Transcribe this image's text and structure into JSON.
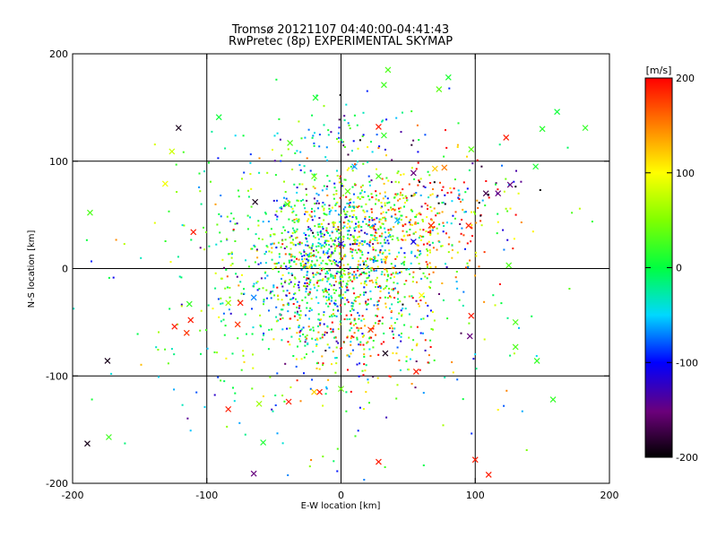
{
  "chart_data": {
    "type": "scatter",
    "title": "Tromsø 20121107 04:40:00-04:41:43",
    "subtitle": "RwPretec (8p) EXPERIMENTAL SKYMAP",
    "xlabel": "E-W location [km]",
    "ylabel": "N-S location [km]",
    "xlim": [
      -200,
      200
    ],
    "ylim": [
      -200,
      200
    ],
    "x_ticks": [
      "-200",
      "-100",
      "0",
      "100",
      "200"
    ],
    "y_ticks": [
      "-200",
      "-100",
      "0",
      "100",
      "200"
    ],
    "grid": true,
    "colorbar": {
      "label": "[m/s]",
      "range": [
        -200,
        200
      ],
      "ticks": [
        "200",
        "100",
        "0",
        "-100",
        "-200"
      ],
      "colormap": "rainbow (black-purple-blue-cyan-green-yellow-red)"
    },
    "cluster_points_approx": [
      {
        "x": -10,
        "y": 5,
        "v": -20,
        "sx": 35,
        "sy": 45,
        "n": 900
      },
      {
        "x": 60,
        "y": 40,
        "v": 150,
        "sx": 35,
        "sy": 30,
        "n": 250
      },
      {
        "x": 15,
        "y": 20,
        "v": 60,
        "sx": 30,
        "sy": 35,
        "n": 300
      },
      {
        "x": 0,
        "y": 120,
        "v": -60,
        "sx": 25,
        "sy": 15,
        "n": 60
      },
      {
        "x": 90,
        "y": 75,
        "v": -150,
        "sx": 25,
        "sy": 15,
        "n": 40
      },
      {
        "x": 10,
        "y": -60,
        "v": 170,
        "sx": 30,
        "sy": 25,
        "n": 120
      },
      {
        "x": -10,
        "y": -30,
        "v": 0,
        "sx": 80,
        "sy": 80,
        "n": 450
      }
    ],
    "marked_points": [
      {
        "x": -121,
        "y": 131,
        "v": -190
      },
      {
        "x": -126,
        "y": 109,
        "v": 80
      },
      {
        "x": -131,
        "y": 79,
        "v": 95
      },
      {
        "x": -187,
        "y": 52,
        "v": 30
      },
      {
        "x": -91,
        "y": 141,
        "v": 5
      },
      {
        "x": -19,
        "y": 159,
        "v": 10
      },
      {
        "x": -38,
        "y": 117,
        "v": 30
      },
      {
        "x": 28,
        "y": 132,
        "v": 190
      },
      {
        "x": 32,
        "y": 171,
        "v": 25
      },
      {
        "x": 35,
        "y": 185,
        "v": 30
      },
      {
        "x": 80,
        "y": 178,
        "v": 10
      },
      {
        "x": 73,
        "y": 167,
        "v": 35
      },
      {
        "x": 32,
        "y": 124,
        "v": 20
      },
      {
        "x": 97,
        "y": 111,
        "v": 35
      },
      {
        "x": 123,
        "y": 122,
        "v": 190
      },
      {
        "x": 150,
        "y": 130,
        "v": 15
      },
      {
        "x": 182,
        "y": 131,
        "v": 20
      },
      {
        "x": 161,
        "y": 146,
        "v": 5
      },
      {
        "x": 145,
        "y": 95,
        "v": 10
      },
      {
        "x": 126,
        "y": 78,
        "v": -150
      },
      {
        "x": 117,
        "y": 70,
        "v": -150
      },
      {
        "x": 108,
        "y": 70,
        "v": -170
      },
      {
        "x": 77,
        "y": 94,
        "v": 150
      },
      {
        "x": 70,
        "y": 93,
        "v": 120
      },
      {
        "x": -110,
        "y": 34,
        "v": 190
      },
      {
        "x": -64,
        "y": 62,
        "v": -190
      },
      {
        "x": -40,
        "y": 60,
        "v": 30
      },
      {
        "x": 5,
        "y": 72,
        "v": 40
      },
      {
        "x": -112,
        "y": -48,
        "v": 190
      },
      {
        "x": -124,
        "y": -54,
        "v": 190
      },
      {
        "x": -115,
        "y": -60,
        "v": 180
      },
      {
        "x": -77,
        "y": -52,
        "v": 180
      },
      {
        "x": -75,
        "y": -32,
        "v": 190
      },
      {
        "x": -65,
        "y": -27,
        "v": -70
      },
      {
        "x": -84,
        "y": -32,
        "v": 60
      },
      {
        "x": -113,
        "y": -33,
        "v": 20
      },
      {
        "x": -174,
        "y": -86,
        "v": -190
      },
      {
        "x": -173,
        "y": -157,
        "v": 25
      },
      {
        "x": -189,
        "y": -163,
        "v": -190
      },
      {
        "x": -84,
        "y": -131,
        "v": 190
      },
      {
        "x": -58,
        "y": -162,
        "v": 10
      },
      {
        "x": -65,
        "y": -191,
        "v": -150
      },
      {
        "x": -39,
        "y": -124,
        "v": 190
      },
      {
        "x": -61,
        "y": -126,
        "v": 60
      },
      {
        "x": -16,
        "y": -115,
        "v": 190
      },
      {
        "x": 22,
        "y": -57,
        "v": 180
      },
      {
        "x": 33,
        "y": -79,
        "v": -190
      },
      {
        "x": 56,
        "y": -96,
        "v": 190
      },
      {
        "x": 96,
        "y": -63,
        "v": -150
      },
      {
        "x": 97,
        "y": -44,
        "v": 190
      },
      {
        "x": 130,
        "y": -73,
        "v": 30
      },
      {
        "x": 130,
        "y": -50,
        "v": 30
      },
      {
        "x": 146,
        "y": -86,
        "v": 20
      },
      {
        "x": 158,
        "y": -122,
        "v": 20
      },
      {
        "x": 100,
        "y": -178,
        "v": 190
      },
      {
        "x": 110,
        "y": -192,
        "v": 190
      },
      {
        "x": 28,
        "y": -180,
        "v": 190
      },
      {
        "x": 0,
        "y": -112,
        "v": 40
      },
      {
        "x": -20,
        "y": -115,
        "v": 120
      },
      {
        "x": 125,
        "y": 3,
        "v": 30
      },
      {
        "x": 60,
        "y": -25,
        "v": 100
      },
      {
        "x": 54,
        "y": 89,
        "v": -150
      },
      {
        "x": 28,
        "y": 86,
        "v": 30
      },
      {
        "x": 0,
        "y": 23,
        "v": -120
      },
      {
        "x": 54,
        "y": 25,
        "v": -110
      },
      {
        "x": 42,
        "y": 45,
        "v": -60
      },
      {
        "x": -20,
        "y": 86,
        "v": 40
      },
      {
        "x": 10,
        "y": 95,
        "v": -60
      },
      {
        "x": 67,
        "y": 40,
        "v": 185
      },
      {
        "x": 95,
        "y": 40,
        "v": 185
      }
    ]
  }
}
